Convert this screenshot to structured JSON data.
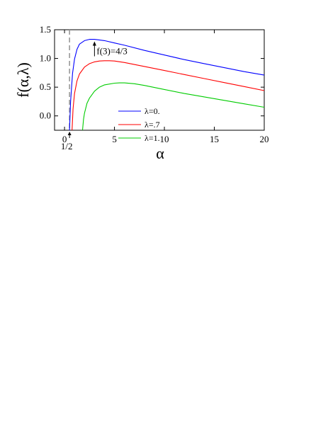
{
  "chart_data": {
    "type": "line",
    "xlabel": "α",
    "ylabel": "f(α,λ)",
    "xlim": [
      -1,
      20
    ],
    "ylim": [
      -0.25,
      1.5
    ],
    "xticks": [
      0,
      5,
      10,
      15,
      20
    ],
    "yticks": [
      0.0,
      0.5,
      1.0,
      1.5
    ],
    "xtick_labels": [
      "0",
      "5",
      "10",
      "15",
      "20"
    ],
    "ytick_labels": [
      "0.0",
      "0.5",
      "1.0",
      "1.5"
    ],
    "grid": false,
    "legend_position": "center",
    "reference_line": {
      "x": 0.5,
      "style": "dashed",
      "color": "#999999",
      "label": "1/2"
    },
    "annotation": {
      "text": "f(3)=4/3",
      "x": 3,
      "y": 1.3333
    },
    "series": [
      {
        "name": "λ=0.",
        "color": "#0000ff",
        "x": [
          0.5,
          0.6,
          0.8,
          1.0,
          1.25,
          1.5,
          2.0,
          2.5,
          3.0,
          4.0,
          5.0,
          6.0,
          8.0,
          10.0,
          12.0,
          14.0,
          16.0,
          18.0,
          20.0
        ],
        "y": [
          -0.25,
          0.24,
          0.74,
          0.99,
          1.16,
          1.25,
          1.31,
          1.333,
          1.333,
          1.31,
          1.27,
          1.23,
          1.14,
          1.06,
          0.98,
          0.91,
          0.84,
          0.77,
          0.71
        ]
      },
      {
        "name": "λ=.7",
        "color": "#ff0000",
        "x": [
          0.75,
          0.85,
          1.0,
          1.25,
          1.5,
          2.0,
          2.5,
          3.0,
          3.5,
          4.0,
          4.5,
          5.0,
          6.0,
          8.0,
          10.0,
          12.0,
          14.0,
          16.0,
          18.0,
          20.0
        ],
        "y": [
          -0.25,
          0.12,
          0.39,
          0.61,
          0.73,
          0.85,
          0.91,
          0.94,
          0.955,
          0.96,
          0.96,
          0.955,
          0.93,
          0.86,
          0.79,
          0.72,
          0.65,
          0.58,
          0.51,
          0.44
        ]
      },
      {
        "name": "λ=1.",
        "color": "#00cc00",
        "x": [
          1.8,
          1.9,
          2.0,
          2.25,
          2.5,
          3.0,
          3.5,
          4.0,
          5.0,
          5.5,
          6.0,
          7.0,
          8.0,
          10.0,
          12.0,
          14.0,
          16.0,
          18.0,
          20.0
        ],
        "y": [
          -0.25,
          -0.06,
          0.05,
          0.22,
          0.31,
          0.43,
          0.5,
          0.54,
          0.57,
          0.575,
          0.575,
          0.56,
          0.53,
          0.46,
          0.39,
          0.33,
          0.27,
          0.21,
          0.15
        ]
      }
    ]
  }
}
